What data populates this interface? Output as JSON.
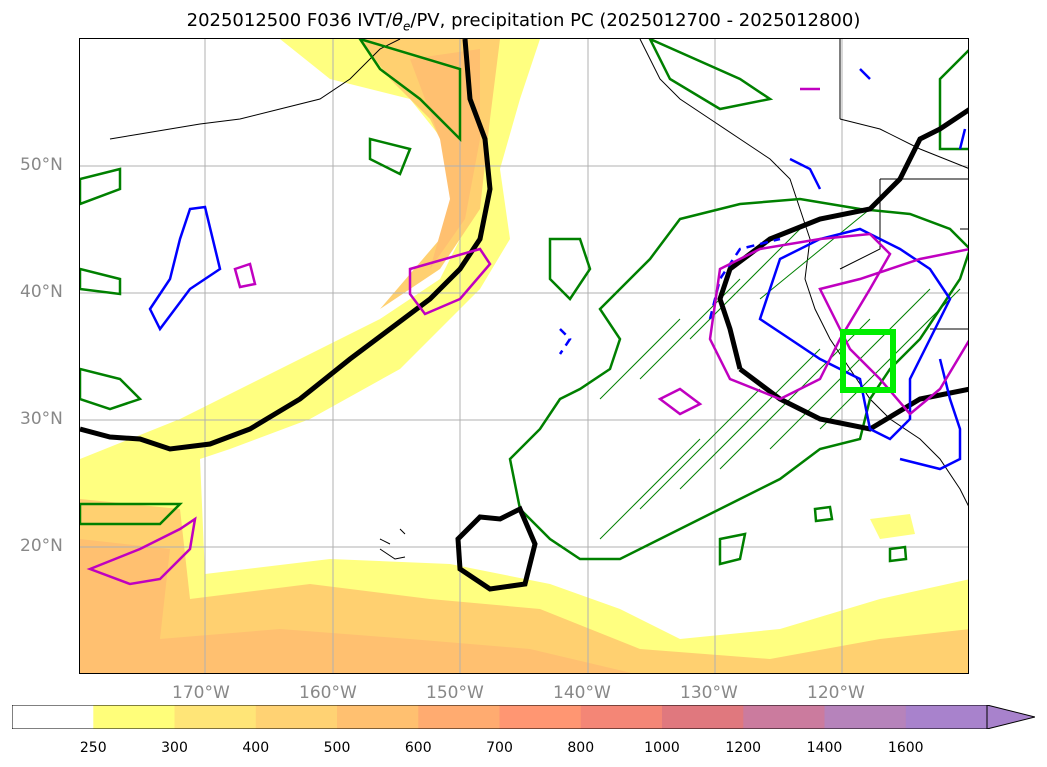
{
  "title": {
    "prefix": "2025012500 F036 IVT/",
    "theta": "θ",
    "theta_sub": "e",
    "suffix": "/PV, precipitation PC (2025012700 - 2025012800)"
  },
  "axes": {
    "lat_labels": [
      "50°N",
      "40°N",
      "30°N",
      "20°N"
    ],
    "lon_labels": [
      "170°W",
      "160°W",
      "150°W",
      "140°W",
      "130°W",
      "120°W"
    ]
  },
  "colorbar": {
    "labels": [
      "250",
      "300",
      "400",
      "500",
      "600",
      "700",
      "800",
      "1000",
      "1200",
      "1400",
      "1600"
    ],
    "colors": [
      "#ffffff",
      "#fffe7a",
      "#ffe577",
      "#ffd273",
      "#ffc070",
      "#ffab70",
      "#ff9672",
      "#f48676",
      "#e0787e",
      "#cb7b9e",
      "#b683bb",
      "#a882cc"
    ]
  },
  "legend_colors": {
    "precip_contour": "#008000",
    "ivt_fill_low": "#ffff80",
    "ivt_fill_mid": "#ffd070",
    "pv_contour": "#000000",
    "theta_e_blue": "#0000ff",
    "theta_e_magenta": "#c000c0",
    "highlight_box": "#00ff00"
  }
}
